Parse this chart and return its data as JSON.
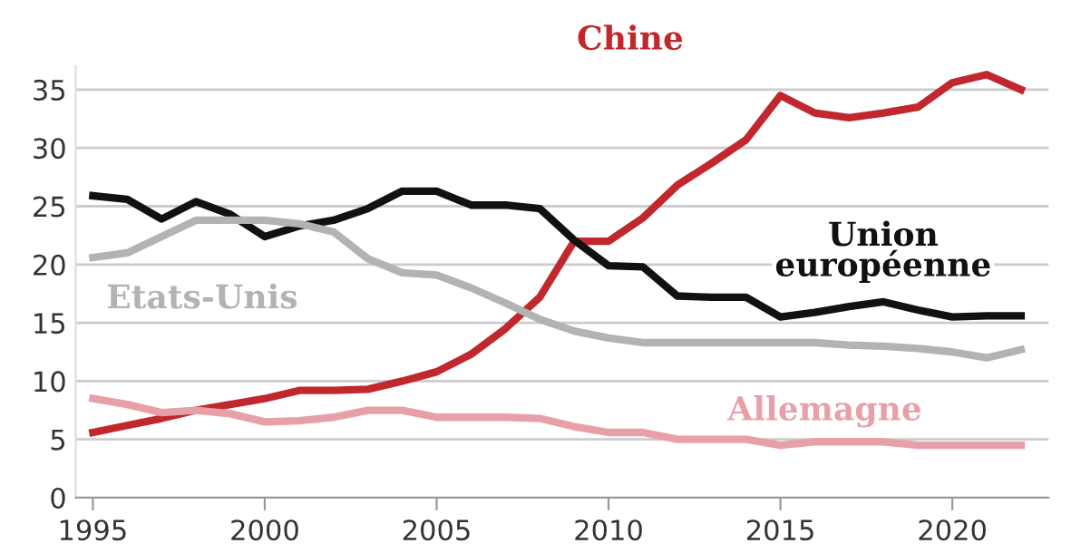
{
  "chart_data": {
    "type": "line",
    "x": [
      1995,
      1996,
      1997,
      1998,
      1999,
      2000,
      2001,
      2002,
      2003,
      2004,
      2005,
      2006,
      2007,
      2008,
      2009,
      2010,
      2011,
      2012,
      2013,
      2014,
      2015,
      2016,
      2017,
      2018,
      2019,
      2020,
      2021,
      2022
    ],
    "series": [
      {
        "name": "Chine",
        "color": "#c0282d",
        "values": [
          5.6,
          6.2,
          6.8,
          7.5,
          8.0,
          8.5,
          9.2,
          9.2,
          9.3,
          10.0,
          10.8,
          12.3,
          14.5,
          17.2,
          22,
          22,
          24,
          26.8,
          28.7,
          30.7,
          34.5,
          33,
          32.6,
          33,
          33.5,
          35.6,
          36.3,
          35
        ]
      },
      {
        "name": "Union européenne",
        "color": "#111111",
        "values": [
          25.9,
          25.6,
          23.9,
          25.4,
          24.3,
          22.4,
          23.3,
          23.8,
          24.8,
          26.3,
          26.3,
          25.1,
          25.1,
          24.8,
          22.1,
          19.9,
          19.8,
          17.3,
          17.2,
          17.2,
          15.5,
          15.9,
          16.4,
          16.8,
          16.1,
          15.5,
          15.6,
          15.6
        ]
      },
      {
        "name": "Etats-Unis",
        "color": "#b3b3b3",
        "values": [
          20.6,
          21.0,
          22.4,
          23.8,
          23.8,
          23.8,
          23.5,
          22.8,
          20.5,
          19.3,
          19.1,
          18.0,
          16.7,
          15.3,
          14.3,
          13.7,
          13.3,
          13.3,
          13.3,
          13.3,
          13.3,
          13.3,
          13.1,
          13.0,
          12.8,
          12.5,
          12.0,
          12.7
        ]
      },
      {
        "name": "Allemagne",
        "color": "#e8a0a8",
        "values": [
          8.5,
          8.0,
          7.3,
          7.5,
          7.2,
          6.5,
          6.6,
          6.9,
          7.5,
          7.5,
          6.9,
          6.9,
          6.9,
          6.8,
          6.1,
          5.6,
          5.6,
          5.0,
          5.0,
          5.0,
          4.5,
          4.8,
          4.8,
          4.8,
          4.5,
          4.5,
          4.5,
          4.5
        ]
      }
    ],
    "xlim": [
      1994.5,
      2022.8
    ],
    "ylim": [
      0,
      37
    ],
    "xticks": [
      1995,
      2000,
      2005,
      2010,
      2015,
      2020
    ],
    "yticks": [
      0,
      5,
      10,
      15,
      20,
      25,
      30,
      35
    ],
    "grid": "y",
    "legend": false,
    "marker": "none",
    "line_style": "solid"
  }
}
